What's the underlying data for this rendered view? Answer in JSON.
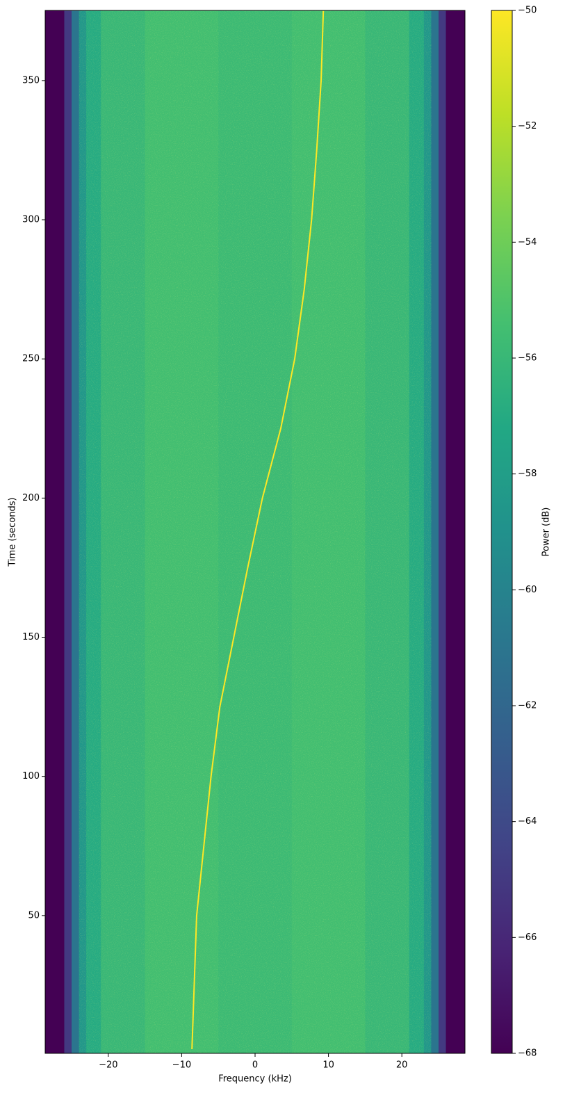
{
  "chart_data": {
    "type": "spectrogram",
    "xlabel": "Frequency (kHz)",
    "ylabel": "Time (seconds)",
    "colorbar_label": "Power (dB)",
    "xlim": [
      -28.6,
      28.6
    ],
    "ylim": [
      0.5,
      375.2
    ],
    "xticks": [
      {
        "value": -20,
        "label": "−20"
      },
      {
        "value": -10,
        "label": "−10"
      },
      0,
      10,
      20
    ],
    "yticks": [
      50,
      100,
      150,
      200,
      250,
      300,
      350
    ],
    "clim": [
      -68,
      -50
    ],
    "cticks": [
      {
        "value": -50,
        "label": "−50"
      },
      {
        "value": -52,
        "label": "−52"
      },
      {
        "value": -54,
        "label": "−54"
      },
      {
        "value": -56,
        "label": "−56"
      },
      {
        "value": -58,
        "label": "−58"
      },
      {
        "value": -60,
        "label": "−60"
      },
      {
        "value": -62,
        "label": "−62"
      },
      {
        "value": -64,
        "label": "−64"
      },
      {
        "value": -66,
        "label": "−66"
      },
      {
        "value": -68,
        "label": "−68"
      }
    ],
    "colormap": "viridis",
    "profile": {
      "bins": [
        -28.6,
        -26,
        -25,
        -24,
        -23,
        -21,
        -15,
        -5,
        5,
        15,
        21,
        23,
        24,
        25,
        26,
        28.6
      ],
      "values": [
        -68,
        -65,
        -61,
        -58.5,
        -57,
        -56,
        -55.5,
        -55.8,
        -55.5,
        -56,
        -57,
        -58.5,
        -61,
        -65,
        -68
      ]
    },
    "series": [
      {
        "color": "#fde725",
        "x": [
          -8.6,
          -7.96,
          -6.0,
          -4.8,
          -2.9,
          -1.0,
          1.0,
          3.5,
          5.4,
          6.7,
          7.7,
          8.4,
          9.0,
          9.3
        ],
        "values": [
          2,
          50,
          100,
          125,
          150,
          175,
          200,
          225,
          250,
          275,
          300,
          325,
          350,
          375
        ]
      }
    ]
  }
}
